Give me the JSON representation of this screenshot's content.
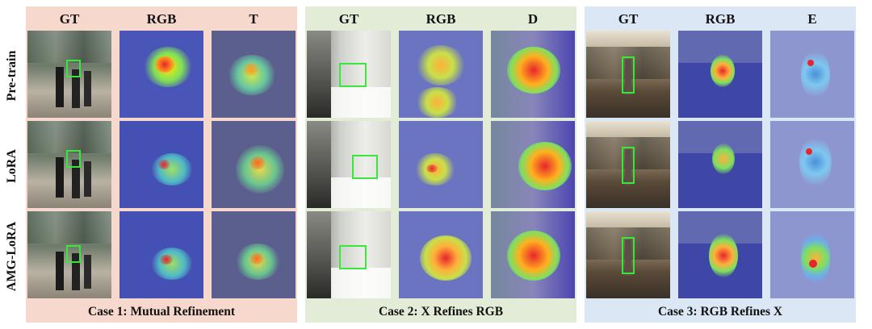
{
  "row_labels": [
    "Pre-train",
    "LoRA",
    "AMG-LoRA"
  ],
  "groups": [
    {
      "caption": "Case 1: Mutual Refinement",
      "columns": [
        "GT",
        "RGB",
        "T"
      ]
    },
    {
      "caption": "Case 2: X Refines RGB",
      "columns": [
        "GT",
        "RGB",
        "D"
      ]
    },
    {
      "caption": "Case 3: RGB Refines X",
      "columns": [
        "GT",
        "RGB",
        "E"
      ]
    }
  ]
}
